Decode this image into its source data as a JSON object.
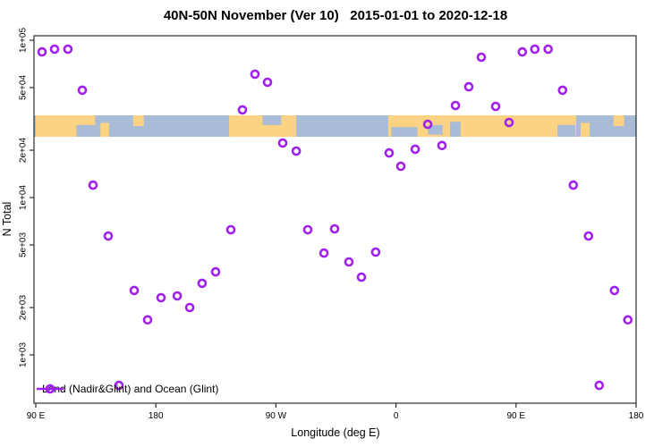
{
  "title": "40N-50N November (Ver 10)   2015-01-01 to 2020-12-18",
  "legend": {
    "label": "Land (Nadir&Glint) and Ocean (Glint)"
  },
  "colors": {
    "marker": "#A020F0",
    "land": "#FBD382",
    "ocean": "#A8BCD8",
    "axis": "#2b2b2b",
    "text": "#000000"
  },
  "chart_data": {
    "type": "scatter",
    "title": "40N-50N November (Ver 10)   2015-01-01 to 2020-12-18",
    "xlabel": "Longitude (deg E)",
    "ylabel": "N Total",
    "legend_entries": [
      "Land (Nadir&Glint) and Ocean (Glint)"
    ],
    "legend_position": "bottom-left",
    "grid": false,
    "x_axis": {
      "note": "longitude wraps eastward: 90E to 180 to 90W to 0 to 90E to 180; 90E-180 data repeated at both ends",
      "range_deg": [
        90,
        540
      ],
      "ticks_deg": [
        90,
        180,
        270,
        360,
        450,
        540
      ],
      "tick_labels": [
        "90 E",
        "180",
        "90 W",
        "0",
        "90 E",
        "180"
      ]
    },
    "y_axis": {
      "scale": "log",
      "range": [
        500,
        110000
      ],
      "ticks": [
        100000,
        50000,
        20000,
        10000,
        5000,
        2000,
        1000
      ],
      "tick_labels": [
        "1e+05",
        "5e+04",
        "2e+04",
        "1e+04",
        "5e+03",
        "2e+03",
        "1e+03"
      ]
    },
    "points": [
      [
        94.7,
        84300
      ],
      [
        104.1,
        87700
      ],
      [
        114.1,
        87700
      ],
      [
        124.9,
        48100
      ],
      [
        132.9,
        12000
      ],
      [
        144.3,
        5700
      ],
      [
        152.4,
        640
      ],
      [
        163.8,
        2570
      ],
      [
        173.8,
        1670
      ],
      [
        183.9,
        2310
      ],
      [
        196.0,
        2370
      ],
      [
        205.4,
        2000
      ],
      [
        214.7,
        2850
      ],
      [
        224.8,
        3370
      ],
      [
        236.2,
        6240
      ],
      [
        244.9,
        36100
      ],
      [
        254.3,
        60800
      ],
      [
        263.7,
        54100
      ],
      [
        275.1,
        22200
      ],
      [
        285.2,
        19750
      ],
      [
        293.9,
        6240
      ],
      [
        306.0,
        4440
      ],
      [
        314.0,
        6330
      ],
      [
        324.7,
        3900
      ],
      [
        334.1,
        3120
      ],
      [
        344.8,
        4500
      ],
      [
        354.9,
        19200
      ],
      [
        363.6,
        15800
      ],
      [
        374.4,
        20300
      ],
      [
        383.8,
        29200
      ],
      [
        394.5,
        21400
      ],
      [
        404.6,
        38500
      ],
      [
        414.6,
        50600
      ],
      [
        424.0,
        78000
      ],
      [
        434.7,
        38000
      ],
      [
        444.8,
        30000
      ],
      [
        454.7,
        84300
      ],
      [
        464.1,
        87700
      ],
      [
        474.1,
        87700
      ],
      [
        484.9,
        48100
      ],
      [
        492.9,
        12000
      ],
      [
        504.3,
        5700
      ],
      [
        512.4,
        640
      ],
      [
        523.8,
        2570
      ],
      [
        533.8,
        1670
      ]
    ],
    "map_band": {
      "description": "40N-50N world-map strip drawn across plot",
      "value_band": [
        24000,
        34000
      ],
      "land_segments": [
        {
          "d0": 90.0,
          "d1": 134.5,
          "f0": 0,
          "f1": 1
        },
        {
          "d0": 138.5,
          "d1": 145.0,
          "f0": 0.35,
          "f1": 1
        },
        {
          "d0": 163.0,
          "d1": 171.0,
          "f0": 0,
          "f1": 0.5
        },
        {
          "d0": 234.9,
          "d1": 285.2,
          "f0": 0,
          "f1": 1
        },
        {
          "d0": 354.2,
          "d1": 495.1,
          "f0": 0,
          "f1": 1
        },
        {
          "d0": 498.4,
          "d1": 505.2,
          "f0": 0.35,
          "f1": 1
        },
        {
          "d0": 523.0,
          "d1": 531.0,
          "f0": 0,
          "f1": 0.5
        }
      ],
      "ocean_patches": [
        {
          "d0": 120.5,
          "d1": 134.5,
          "f0": 0.45,
          "f1": 1
        },
        {
          "d0": 260.0,
          "d1": 274.0,
          "f0": 0,
          "f1": 0.45
        },
        {
          "d0": 356.5,
          "d1": 376.0,
          "f0": 0.55,
          "f1": 1
        },
        {
          "d0": 384.0,
          "d1": 395.0,
          "f0": 0.45,
          "f1": 0.9
        },
        {
          "d0": 400.5,
          "d1": 408.5,
          "f0": 0.3,
          "f1": 1
        },
        {
          "d0": 481.0,
          "d1": 494.5,
          "f0": 0.45,
          "f1": 1
        }
      ]
    }
  }
}
